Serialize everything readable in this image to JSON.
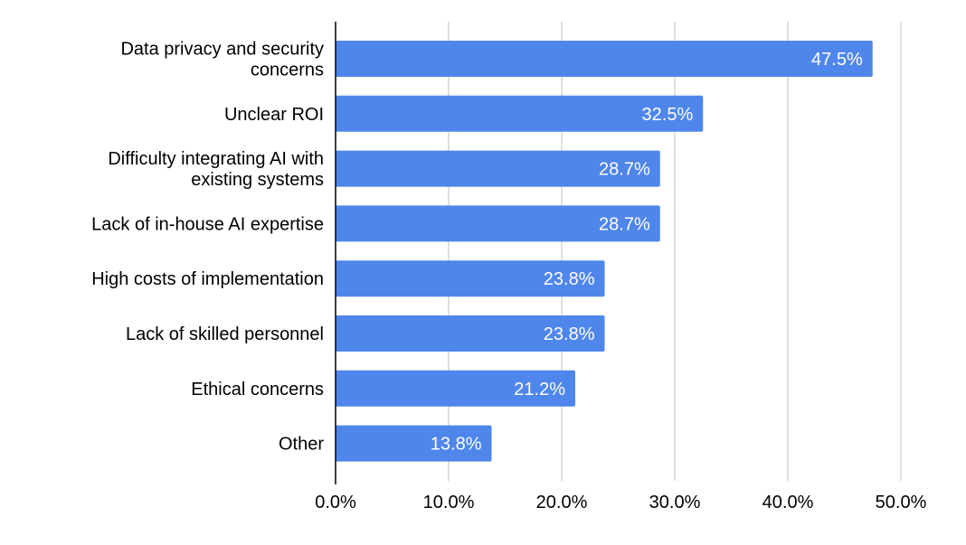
{
  "chart_data": {
    "type": "bar",
    "orientation": "horizontal",
    "title": "",
    "xlabel": "",
    "ylabel": "",
    "categories": [
      [
        "Data privacy and security",
        "concerns"
      ],
      [
        "Unclear ROI"
      ],
      [
        "Difficulty integrating AI with",
        "existing systems"
      ],
      [
        "Lack of in-house AI expertise"
      ],
      [
        "High costs of implementation"
      ],
      [
        "Lack of skilled personnel"
      ],
      [
        "Ethical concerns"
      ],
      [
        "Other"
      ]
    ],
    "values": [
      47.5,
      32.5,
      28.7,
      28.7,
      23.8,
      23.8,
      21.2,
      13.8
    ],
    "data_labels": [
      "47.5%",
      "32.5%",
      "28.7%",
      "28.7%",
      "23.8%",
      "23.8%",
      "21.2%",
      "13.8%"
    ],
    "xlim": [
      0,
      50
    ],
    "ticks": [
      0,
      10,
      20,
      30,
      40,
      50
    ],
    "tick_labels": [
      "0.0%",
      "10.0%",
      "20.0%",
      "30.0%",
      "40.0%",
      "50.0%"
    ],
    "grid": "vertical",
    "legend": "none",
    "colors": {
      "bar": "#4f86eb",
      "grid": "#cccccc",
      "axis": "#000000",
      "label_text": "#ffffff",
      "text": "#000000"
    }
  }
}
